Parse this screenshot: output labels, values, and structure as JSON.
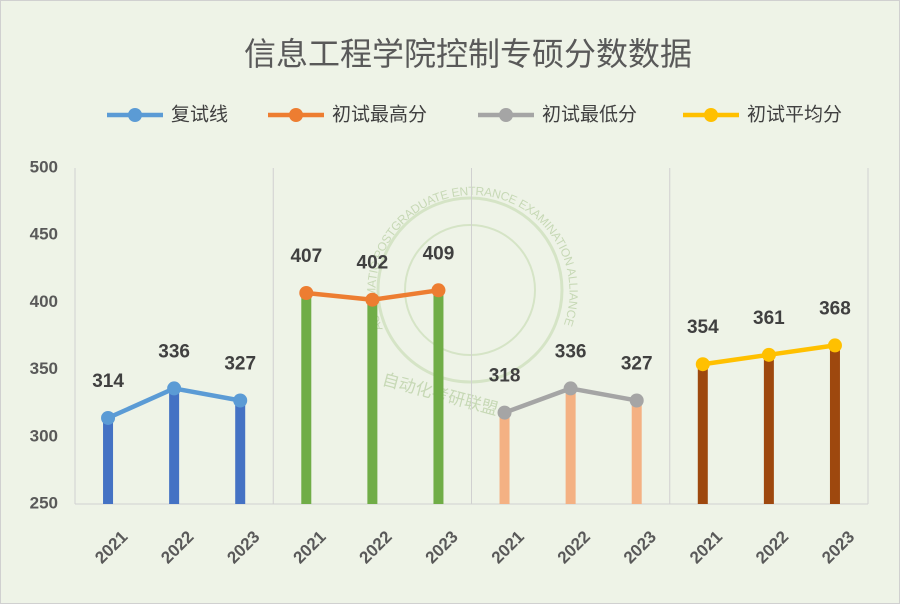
{
  "chart_data": {
    "type": "line",
    "title": "信息工程学院控制专硕分数数据",
    "categories": [
      "2021",
      "2022",
      "2023",
      "2021",
      "2022",
      "2023",
      "2021",
      "2022",
      "2023",
      "2021",
      "2022",
      "2023"
    ],
    "series": [
      {
        "name": "复试线",
        "color": "#5b9bd5",
        "bar_color": "#4472c4",
        "values": [
          314,
          336,
          327,
          null,
          null,
          null,
          null,
          null,
          null,
          null,
          null,
          null
        ]
      },
      {
        "name": "初试最高分",
        "color": "#ed7d31",
        "bar_color": "#70ad47",
        "values": [
          null,
          null,
          null,
          407,
          402,
          409,
          null,
          null,
          null,
          null,
          null,
          null
        ]
      },
      {
        "name": "初试最低分",
        "color": "#a5a5a5",
        "bar_color": "#f4b183",
        "values": [
          null,
          null,
          null,
          null,
          null,
          null,
          318,
          336,
          327,
          null,
          null,
          null
        ]
      },
      {
        "name": "初试平均分",
        "color": "#ffc000",
        "bar_color": "#9e480e",
        "values": [
          null,
          null,
          null,
          null,
          null,
          null,
          null,
          null,
          null,
          354,
          361,
          368
        ]
      }
    ],
    "ylim": [
      250,
      500
    ],
    "yticks": [
      250,
      300,
      350,
      400,
      450,
      500
    ],
    "legend": "top",
    "watermark": {
      "text_en": "AUTOMATIC POSTGRADUATE ENTRANCE EXAMINATION ALLIANCE",
      "text_zh": "自动化考研联盟"
    }
  }
}
